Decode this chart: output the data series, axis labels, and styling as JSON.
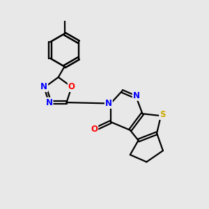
{
  "background_color": "#e8e8e8",
  "bond_color": "#000000",
  "atom_colors": {
    "N": "#0000ff",
    "O": "#ff0000",
    "S": "#ccaa00",
    "C": "#000000"
  },
  "bond_width": 1.6,
  "figsize": [
    3.0,
    3.0
  ],
  "dpi": 100
}
